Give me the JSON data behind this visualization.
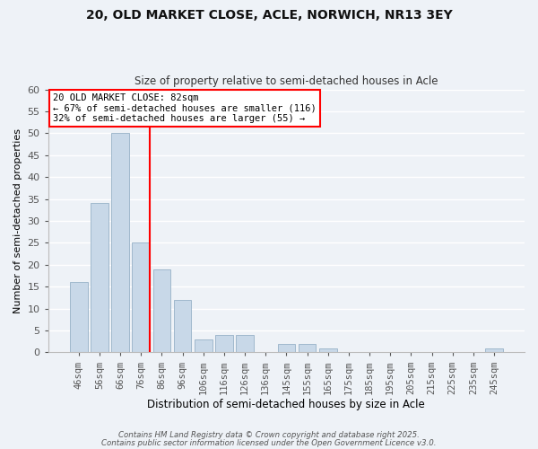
{
  "title": "20, OLD MARKET CLOSE, ACLE, NORWICH, NR13 3EY",
  "subtitle": "Size of property relative to semi-detached houses in Acle",
  "xlabel": "Distribution of semi-detached houses by size in Acle",
  "ylabel": "Number of semi-detached properties",
  "bar_labels": [
    "46sqm",
    "56sqm",
    "66sqm",
    "76sqm",
    "86sqm",
    "96sqm",
    "106sqm",
    "116sqm",
    "126sqm",
    "136sqm",
    "145sqm",
    "155sqm",
    "165sqm",
    "175sqm",
    "185sqm",
    "195sqm",
    "205sqm",
    "215sqm",
    "225sqm",
    "235sqm",
    "245sqm"
  ],
  "bar_values": [
    16,
    34,
    50,
    25,
    19,
    12,
    3,
    4,
    4,
    0,
    2,
    2,
    1,
    0,
    0,
    0,
    0,
    0,
    0,
    0,
    1
  ],
  "bar_color": "#c8d8e8",
  "bar_edge_color": "#a0b8cc",
  "vline_color": "red",
  "ylim": [
    0,
    60
  ],
  "yticks": [
    0,
    5,
    10,
    15,
    20,
    25,
    30,
    35,
    40,
    45,
    50,
    55,
    60
  ],
  "annotation_title": "20 OLD MARKET CLOSE: 82sqm",
  "annotation_line1": "← 67% of semi-detached houses are smaller (116)",
  "annotation_line2": "32% of semi-detached houses are larger (55) →",
  "bg_color": "#eef2f7",
  "grid_color": "#ffffff",
  "footer1": "Contains HM Land Registry data © Crown copyright and database right 2025.",
  "footer2": "Contains public sector information licensed under the Open Government Licence v3.0."
}
